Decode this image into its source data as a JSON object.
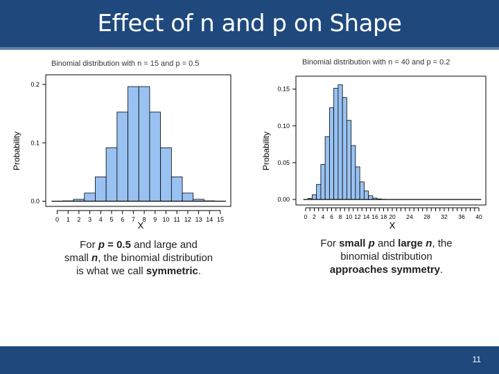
{
  "slide": {
    "title": "Effect of n and p on Shape",
    "page_number": "11",
    "colors": {
      "title_bar": "#1f497d",
      "bar_fill": "#99c2f2",
      "bar_stroke": "#000000"
    }
  },
  "captions": {
    "left": [
      [
        {
          "t": "For ",
          "b": false
        },
        {
          "t": "p",
          "b": true,
          "i": true
        },
        {
          "t": " = 0.5",
          "b": true
        },
        {
          "t": " and large and",
          "b": false
        }
      ],
      [
        {
          "t": "small ",
          "b": false
        },
        {
          "t": "n",
          "b": true,
          "i": true
        },
        {
          "t": ", the binomial distribution",
          "b": false
        }
      ],
      [
        {
          "t": "is what we call ",
          "b": false
        },
        {
          "t": "symmetric",
          "b": true
        },
        {
          "t": ".",
          "b": false
        }
      ]
    ],
    "right": [
      [
        {
          "t": "For ",
          "b": false
        },
        {
          "t": "small ",
          "b": true
        },
        {
          "t": "p",
          "b": true,
          "i": true
        },
        {
          "t": " and ",
          "b": false
        },
        {
          "t": "large ",
          "b": true
        },
        {
          "t": "n",
          "b": true,
          "i": true
        },
        {
          "t": ", the",
          "b": false
        }
      ],
      [
        {
          "t": "binomial distribution",
          "b": false
        }
      ],
      [
        {
          "t": "approaches symmetry",
          "b": true
        },
        {
          "t": ".",
          "b": false
        }
      ]
    ]
  },
  "chart_data": [
    {
      "type": "bar",
      "title": "Binomial distribution with n = 15 and p = 0.5",
      "xlabel": "X",
      "ylabel": "Probability",
      "x": [
        0,
        1,
        2,
        3,
        4,
        5,
        6,
        7,
        8,
        9,
        10,
        11,
        12,
        13,
        14,
        15
      ],
      "values": [
        3e-05,
        0.0005,
        0.0032,
        0.0139,
        0.0417,
        0.0916,
        0.1527,
        0.1964,
        0.1964,
        0.1527,
        0.0916,
        0.0417,
        0.0139,
        0.0032,
        0.0005,
        3e-05
      ],
      "xticks": [
        "0",
        "1",
        "2",
        "3",
        "4",
        "5",
        "6",
        "7",
        "8",
        "9",
        "10",
        "11",
        "12",
        "13",
        "14",
        "15"
      ],
      "yticks": [
        "0.0",
        "0.1",
        "0.2"
      ],
      "ylim": [
        0,
        0.2
      ]
    },
    {
      "type": "bar",
      "title": "Binomial distribution with n = 40 and p = 0.2",
      "xlabel": "X",
      "ylabel": "Probability",
      "x": [
        0,
        1,
        2,
        3,
        4,
        5,
        6,
        7,
        8,
        9,
        10,
        11,
        12,
        13,
        14,
        15,
        16,
        17,
        18,
        19,
        20,
        21,
        22,
        23,
        24,
        25,
        26,
        27,
        28,
        29,
        30,
        31,
        32,
        33,
        34,
        35,
        36,
        37,
        38,
        39,
        40
      ],
      "values": [
        0.0001,
        0.0013,
        0.0065,
        0.0205,
        0.0475,
        0.0854,
        0.1246,
        0.1512,
        0.156,
        0.1386,
        0.1075,
        0.0733,
        0.0443,
        0.0238,
        0.0115,
        0.005,
        0.0019,
        0.0007,
        0.0002,
        0.0001,
        0,
        0,
        0,
        0,
        0,
        0,
        0,
        0,
        0,
        0,
        0,
        0,
        0,
        0,
        0,
        0,
        0,
        0,
        0,
        0,
        0
      ],
      "xticks": [
        "0",
        "2",
        "4",
        "6",
        "8",
        "10",
        "12",
        "14",
        "16",
        "18",
        "20",
        "24",
        "28",
        "32",
        "36",
        "40"
      ],
      "yticks": [
        "0.00",
        "0.05",
        "0.10",
        "0.15"
      ],
      "ylim": [
        0,
        0.16
      ]
    }
  ]
}
